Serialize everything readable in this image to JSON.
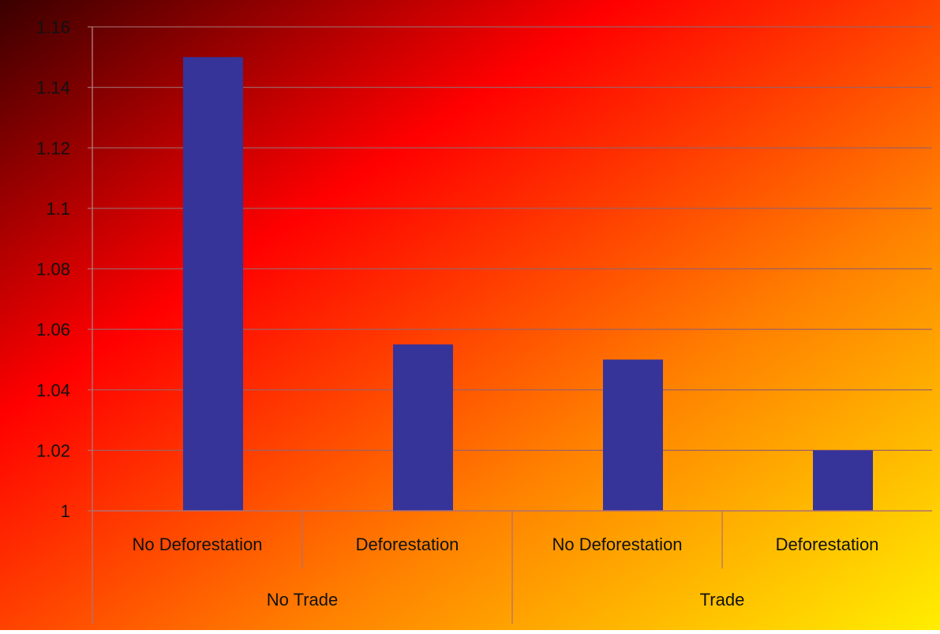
{
  "chart_data": {
    "type": "bar",
    "categories": [
      {
        "label": "No Deforestation",
        "group": "No Trade"
      },
      {
        "label": "Deforestation",
        "group": "No Trade"
      },
      {
        "label": "No Deforestation",
        "group": "Trade"
      },
      {
        "label": "Deforestation",
        "group": "Trade"
      }
    ],
    "groups": [
      "No Trade",
      "Trade"
    ],
    "values": [
      1.15,
      1.055,
      1.05,
      1.02
    ],
    "y_ticks": [
      "1",
      "1.02",
      "1.04",
      "1.06",
      "1.08",
      "1.1",
      "1.12",
      "1.14",
      "1.16"
    ],
    "ylim": [
      1,
      1.16
    ],
    "grid": true,
    "legend": "none",
    "title": "",
    "xlabel": "",
    "ylabel": "",
    "colors": {
      "bar": "#363399",
      "gradient_dark": "#3a0000",
      "gradient_red": "#ff0000",
      "gradient_orange": "#ff8000",
      "gradient_yellow": "#ffee00",
      "gridline": "#a06060",
      "axis": "#b07070"
    }
  }
}
